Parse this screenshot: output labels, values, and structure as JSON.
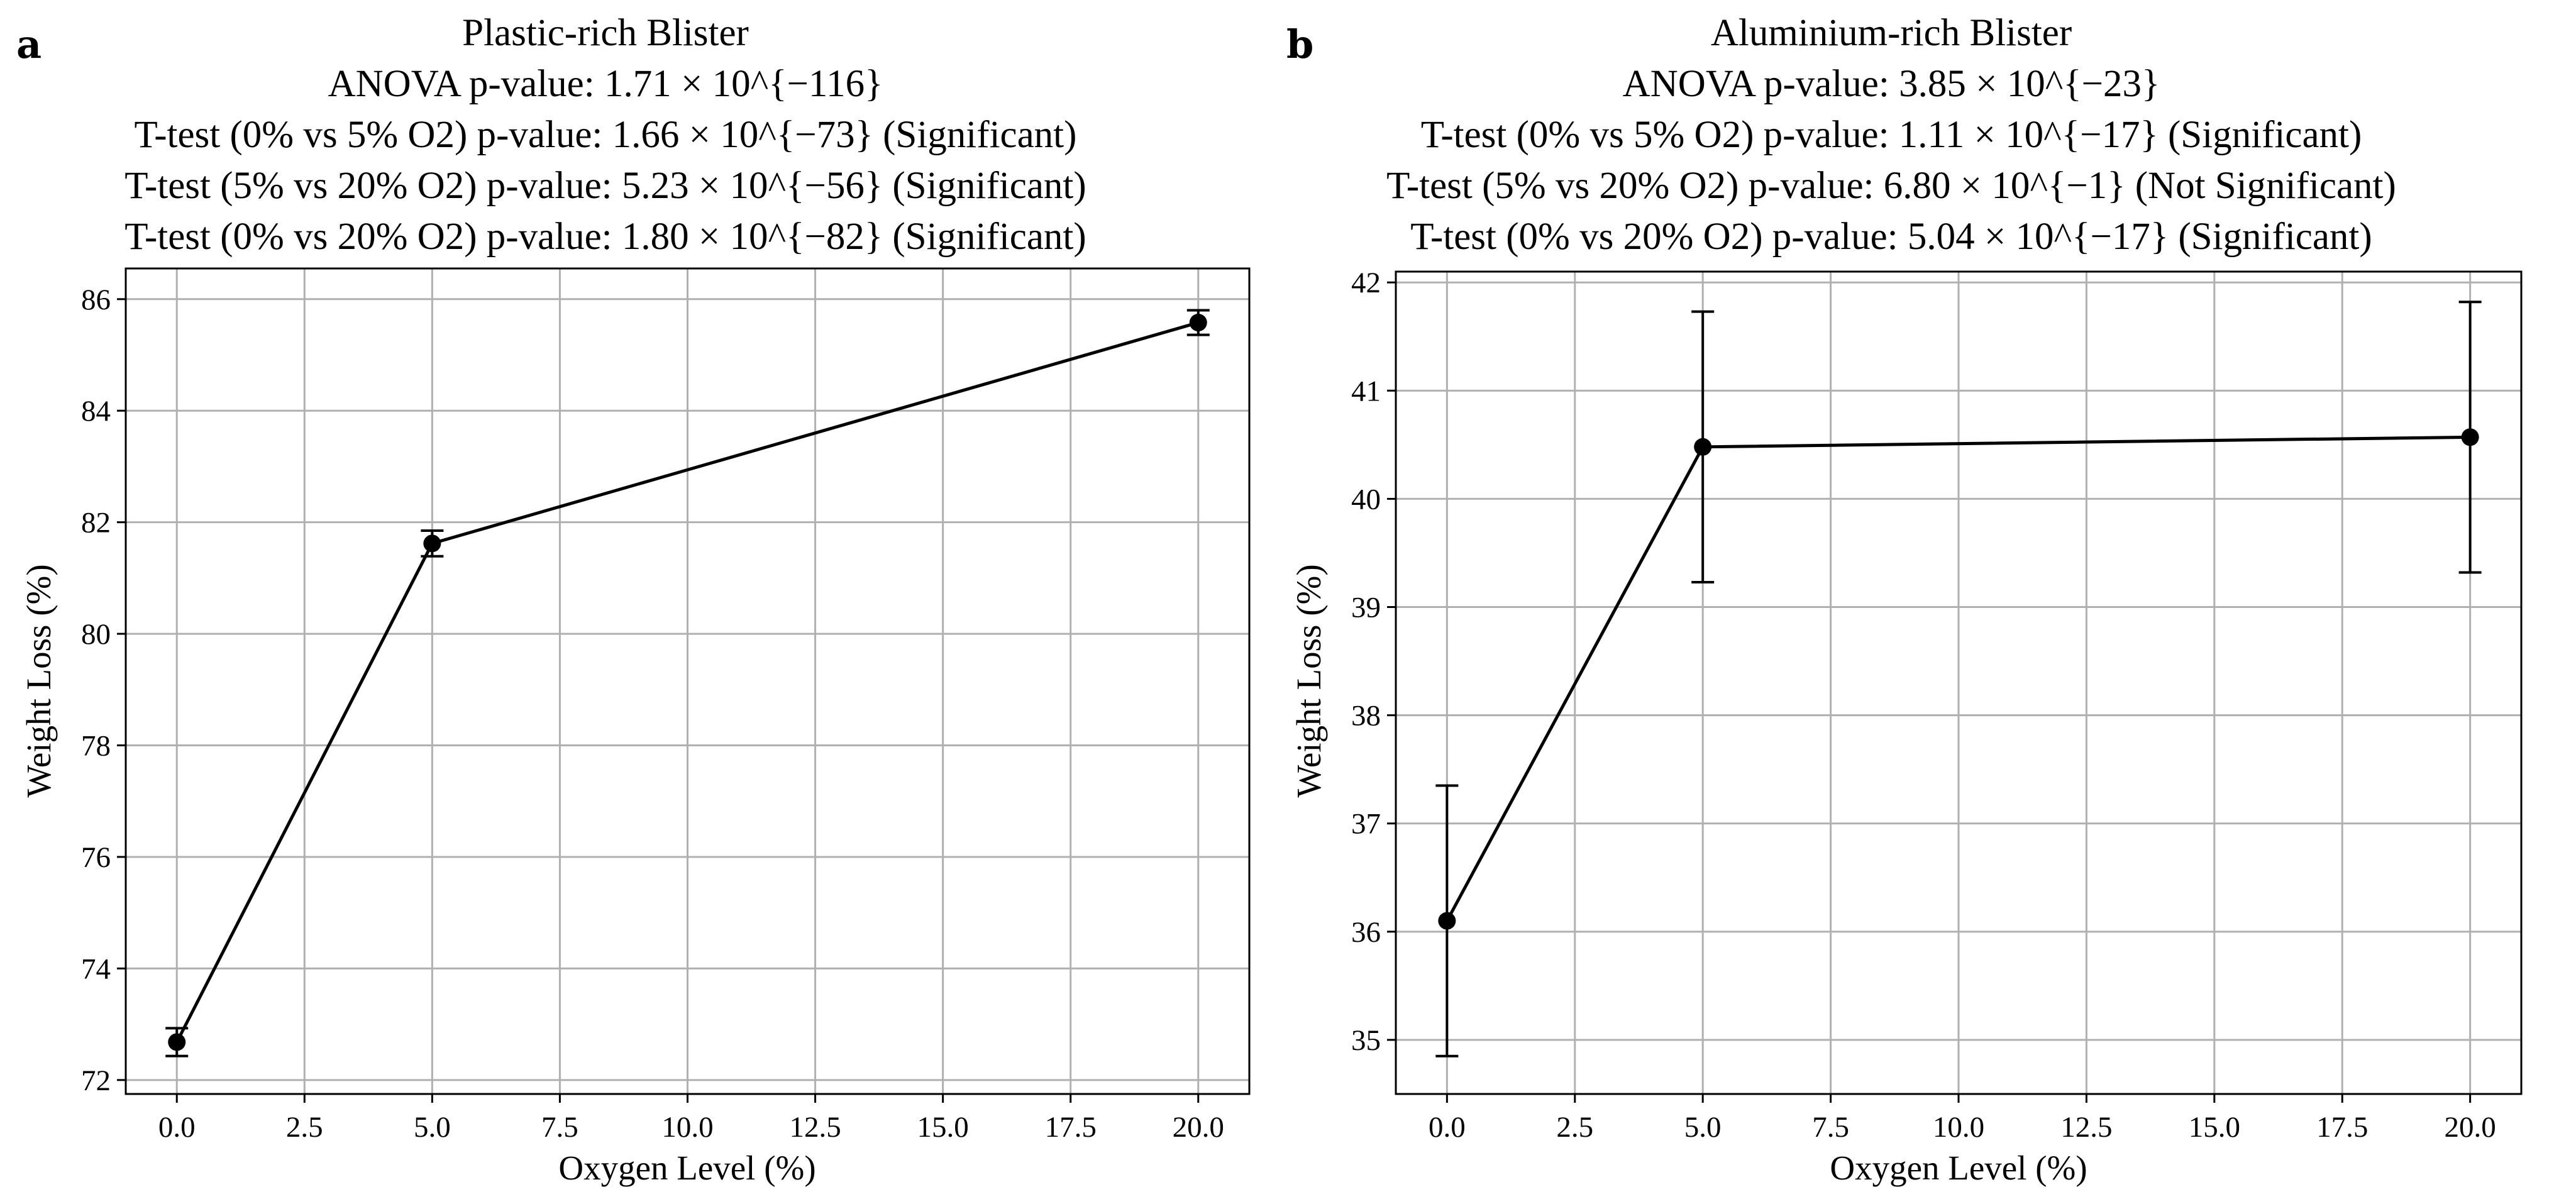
{
  "chart_data": [
    {
      "type": "line",
      "panel_label": "a",
      "title_lines": [
        "Plastic-rich Blister",
        "ANOVA p-value: 1.71 × 10^{−116}",
        "T-test (0% vs 5% O2) p-value: 1.66 × 10^{−73} (Significant)",
        "T-test (5% vs 20% O2) p-value: 5.23 × 10^{−56} (Significant)",
        "T-test (0% vs 20% O2) p-value: 1.80 × 10^{−82} (Significant)"
      ],
      "xlabel": "Oxygen Level (%)",
      "ylabel": "Weight Loss (%)",
      "x": [
        0,
        5,
        20
      ],
      "y": [
        72.68,
        81.62,
        85.58
      ],
      "yerr": [
        0.25,
        0.23,
        0.22
      ],
      "xlim": [
        -1.0,
        21.0
      ],
      "ylim": [
        71.75,
        86.55
      ],
      "xticks": [
        0,
        2.5,
        5,
        7.5,
        10,
        12.5,
        15,
        17.5,
        20
      ],
      "xtick_labels": [
        "0.0",
        "2.5",
        "5.0",
        "7.5",
        "10.0",
        "12.5",
        "15.0",
        "17.5",
        "20.0"
      ],
      "yticks": [
        72,
        74,
        76,
        78,
        80,
        82,
        84,
        86
      ],
      "ytick_labels": [
        "72",
        "74",
        "76",
        "78",
        "80",
        "82",
        "84",
        "86"
      ],
      "grid": true,
      "color": "#000000"
    },
    {
      "type": "line",
      "panel_label": "b",
      "title_lines": [
        "Aluminium-rich Blister",
        "ANOVA p-value: 3.85 × 10^{−23}",
        "T-test (0% vs 5% O2) p-value: 1.11 × 10^{−17} (Significant)",
        "T-test (5% vs 20% O2) p-value: 6.80 × 10^{−1} (Not Significant)",
        "T-test (0% vs 20% O2) p-value: 5.04 × 10^{−17} (Significant)"
      ],
      "xlabel": "Oxygen Level (%)",
      "ylabel": "Weight Loss (%)",
      "x": [
        0,
        5,
        20
      ],
      "y": [
        36.1,
        40.48,
        40.57
      ],
      "yerr": [
        1.25,
        1.25,
        1.25
      ],
      "xlim": [
        -1.0,
        21.0
      ],
      "ylim": [
        34.5,
        42.1
      ],
      "xticks": [
        0,
        2.5,
        5,
        7.5,
        10,
        12.5,
        15,
        17.5,
        20
      ],
      "xtick_labels": [
        "0.0",
        "2.5",
        "5.0",
        "7.5",
        "10.0",
        "12.5",
        "15.0",
        "17.5",
        "20.0"
      ],
      "yticks": [
        35,
        36,
        37,
        38,
        39,
        40,
        41,
        42
      ],
      "ytick_labels": [
        "35",
        "36",
        "37",
        "38",
        "39",
        "40",
        "41",
        "42"
      ],
      "grid": true,
      "color": "#000000"
    }
  ]
}
